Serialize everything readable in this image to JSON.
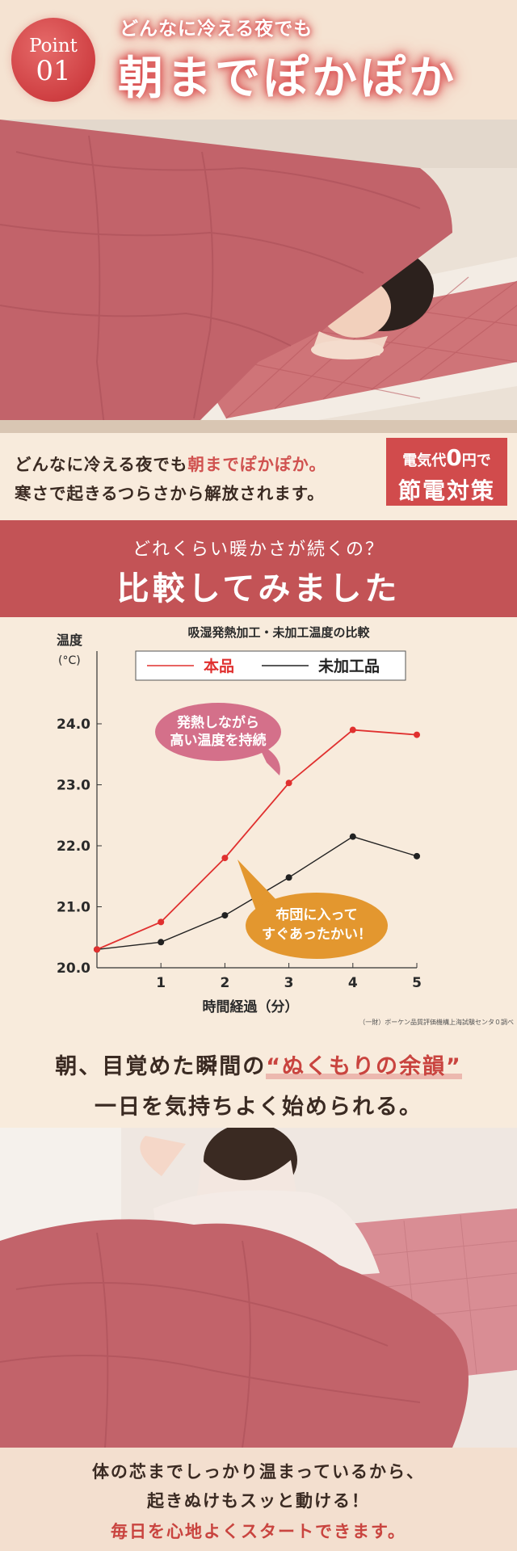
{
  "header": {
    "badge_word": "Point",
    "badge_number": "01",
    "subtitle": "どんなに冷える夜でも",
    "title": "朝までぽかぽか"
  },
  "intro": {
    "line1_prefix": "どんなに冷える夜でも",
    "line1_highlight": "朝までぽかぽか。",
    "line2": "寒さで起きるつらさから解放されます。"
  },
  "price_badge": {
    "line1_prefix": "電気代",
    "line1_zero": "0",
    "line1_suffix": "円で",
    "line2": "節電対策"
  },
  "compare_banner": {
    "subtitle": "どれくらい暖かさが続くの？",
    "title": "比較してみました"
  },
  "chart_data": {
    "type": "line",
    "title": "吸湿発熱加工・未加工温度の比較",
    "ylabel": "温度",
    "yunit": "(°C)",
    "xlabel": "時間経過（分）",
    "x": [
      0,
      1,
      2,
      3,
      4,
      5
    ],
    "x_tick_labels": [
      "1",
      "2",
      "3",
      "4",
      "5"
    ],
    "y_tick_labels": [
      "20.0",
      "21.0",
      "22.0",
      "23.0",
      "24.0"
    ],
    "ylim": [
      20.0,
      24.0
    ],
    "xlim": [
      0,
      5
    ],
    "series": [
      {
        "name": "本品",
        "color": "#e0302f",
        "values": [
          20.3,
          20.75,
          21.8,
          23.03,
          23.9,
          23.82
        ]
      },
      {
        "name": "未加工品",
        "color": "#222222",
        "values": [
          20.3,
          20.42,
          20.86,
          21.48,
          22.15,
          21.83
        ]
      }
    ],
    "legend_position": "top",
    "callouts": [
      {
        "text_line1": "発熱しながら",
        "text_line2": "高い温度を持続",
        "color": "#d4708a"
      },
      {
        "text_line1": "布団に入って",
        "text_line2": "すぐあったかい！",
        "color": "#e3972f"
      }
    ],
    "source_note": "（一財）ボーケン品質評価機構上海試験センタ０調べ"
  },
  "warmth": {
    "line1_prefix": "朝、目覚めた瞬間の",
    "line1_highlight": "“ぬくもりの余韻”",
    "line2": "一日を気持ちよく始められる。"
  },
  "closing": {
    "line1": "体の芯までしっかり温まっているから、",
    "line2": "起きぬけもスッと動ける！",
    "line3": "毎日を心地よくスタートできます。"
  },
  "colors": {
    "accent": "#d14b4c",
    "banner": "#c35356",
    "background": "#f8ebdc",
    "blanket": "#c2636a"
  }
}
